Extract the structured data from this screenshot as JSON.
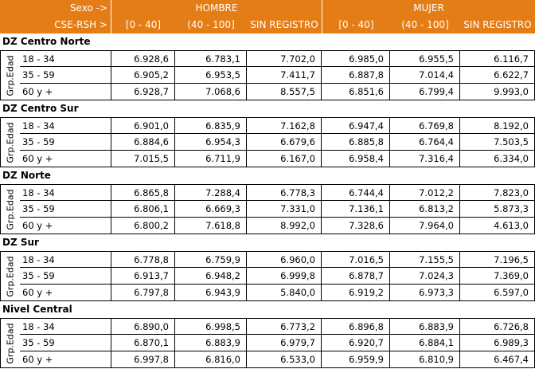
{
  "header": {
    "sexo_label": "Sexo ->",
    "cse_label": "CSE-RSH >",
    "hombre": "HOMBRE",
    "mujer": "MUJER",
    "columns": [
      "[0  -  40]",
      "(40 - 100]",
      "SIN REGISTRO",
      "[0  -  40]",
      "(40 - 100]",
      "SIN REGISTRO"
    ]
  },
  "group_label": "Grp.Edad",
  "regions": [
    {
      "name": "DZ Centro Norte",
      "rows": [
        {
          "age": "18 - 34",
          "values": [
            "6.928,6",
            "6.783,1",
            "7.702,0",
            "6.985,0",
            "6.955,5",
            "6.116,7"
          ]
        },
        {
          "age": "35 - 59",
          "values": [
            "6.905,2",
            "6.953,5",
            "7.411,7",
            "6.887,8",
            "7.014,4",
            "6.622,7"
          ]
        },
        {
          "age": "60 y +",
          "values": [
            "6.928,7",
            "7.068,6",
            "8.557,5",
            "6.851,6",
            "6.799,4",
            "9.993,0"
          ]
        }
      ]
    },
    {
      "name": "DZ Centro Sur",
      "rows": [
        {
          "age": "18 - 34",
          "values": [
            "6.901,0",
            "6.835,9",
            "7.162,8",
            "6.947,4",
            "6.769,8",
            "8.192,0"
          ]
        },
        {
          "age": "35 - 59",
          "values": [
            "6.884,6",
            "6.954,3",
            "6.679,6",
            "6.885,8",
            "6.764,4",
            "7.503,5"
          ]
        },
        {
          "age": "60 y +",
          "values": [
            "7.015,5",
            "6.711,9",
            "6.167,0",
            "6.958,4",
            "7.316,4",
            "6.334,0"
          ]
        }
      ]
    },
    {
      "name": "DZ Norte",
      "rows": [
        {
          "age": "18 - 34",
          "values": [
            "6.865,8",
            "7.288,4",
            "6.778,3",
            "6.744,4",
            "7.012,2",
            "7.823,0"
          ]
        },
        {
          "age": "35 - 59",
          "values": [
            "6.806,1",
            "6.669,3",
            "7.331,0",
            "7.136,1",
            "6.813,2",
            "5.873,3"
          ]
        },
        {
          "age": "60 y +",
          "values": [
            "6.800,2",
            "7.618,8",
            "8.992,0",
            "7.328,6",
            "7.964,0",
            "4.613,0"
          ]
        }
      ]
    },
    {
      "name": "DZ Sur",
      "rows": [
        {
          "age": "18 - 34",
          "values": [
            "6.778,8",
            "6.759,9",
            "6.960,0",
            "7.016,5",
            "7.155,5",
            "7.196,5"
          ]
        },
        {
          "age": "35 - 59",
          "values": [
            "6.913,7",
            "6.948,2",
            "6.999,8",
            "6.878,7",
            "7.024,3",
            "7.369,0"
          ]
        },
        {
          "age": "60 y +",
          "values": [
            "6.797,8",
            "6.943,9",
            "5.840,0",
            "6.919,2",
            "6.973,3",
            "6.597,0"
          ]
        }
      ]
    },
    {
      "name": "Nivel Central",
      "rows": [
        {
          "age": "18 - 34",
          "values": [
            "6.890,0",
            "6.998,5",
            "6.773,2",
            "6.896,8",
            "6.883,9",
            "6.726,8"
          ]
        },
        {
          "age": "35 - 59",
          "values": [
            "6.870,1",
            "6.883,9",
            "6.979,7",
            "6.920,7",
            "6.884,1",
            "6.989,3"
          ]
        },
        {
          "age": "60 y +",
          "values": [
            "6.997,8",
            "6.816,0",
            "6.533,0",
            "6.959,9",
            "6.810,9",
            "6.467,4"
          ]
        }
      ]
    }
  ]
}
